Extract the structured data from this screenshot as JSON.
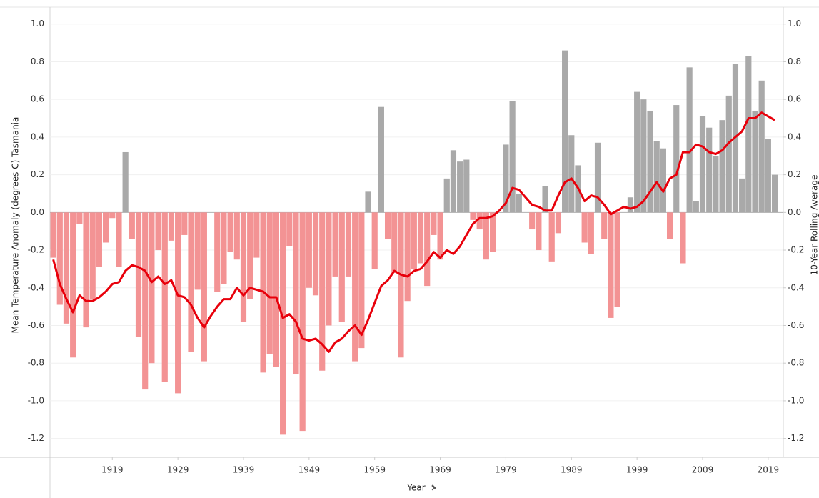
{
  "chart_data": {
    "type": "combo",
    "y_axis_label": "Mean Temperature Anomaly (degrees C) Tasmania",
    "y2_axis_label": "10-Year Rolling Average",
    "x_axis_label": "Year",
    "x": [
      1910,
      1911,
      1912,
      1913,
      1914,
      1915,
      1916,
      1917,
      1918,
      1919,
      1920,
      1921,
      1922,
      1923,
      1924,
      1925,
      1926,
      1927,
      1928,
      1929,
      1930,
      1931,
      1932,
      1933,
      1934,
      1935,
      1936,
      1937,
      1938,
      1939,
      1940,
      1941,
      1942,
      1943,
      1944,
      1945,
      1946,
      1947,
      1948,
      1949,
      1950,
      1951,
      1952,
      1953,
      1954,
      1955,
      1956,
      1957,
      1958,
      1959,
      1960,
      1961,
      1962,
      1963,
      1964,
      1965,
      1966,
      1967,
      1968,
      1969,
      1970,
      1971,
      1972,
      1973,
      1974,
      1975,
      1976,
      1977,
      1978,
      1979,
      1980,
      1981,
      1982,
      1983,
      1984,
      1985,
      1986,
      1987,
      1988,
      1989,
      1990,
      1991,
      1992,
      1993,
      1994,
      1995,
      1996,
      1997,
      1998,
      1999,
      2000,
      2001,
      2002,
      2003,
      2004,
      2005,
      2006,
      2007,
      2008,
      2009,
      2010,
      2011,
      2012,
      2013,
      2014,
      2015,
      2016,
      2017,
      2018,
      2019,
      2020
    ],
    "xlim": [
      1909.5,
      2021.3
    ],
    "xticks": [
      1919,
      1929,
      1939,
      1949,
      1959,
      1969,
      1979,
      1989,
      1999,
      2009,
      2019
    ],
    "ylim": [
      -1.3,
      1.09
    ],
    "yticks": [
      {
        "value": -1.2,
        "label": "-1.2"
      },
      {
        "value": -1,
        "label": "-1.0"
      },
      -0.8,
      -0.6,
      -0.4,
      -0.2,
      {
        "value": 0,
        "label": "0.0"
      },
      0.2,
      0.4,
      0.6,
      0.8,
      {
        "value": 1,
        "label": "1.0"
      }
    ],
    "y2lim": [
      -1.3,
      1.09
    ],
    "y2ticks": [
      {
        "value": -1.2,
        "label": "-1.2"
      },
      {
        "value": -1,
        "label": "-1.0"
      },
      -0.8,
      -0.6,
      -0.4,
      -0.2,
      {
        "value": 0,
        "label": "0.0"
      },
      0.2,
      0.4,
      0.6,
      0.8,
      {
        "value": 1,
        "label": "1.0"
      }
    ],
    "grid": true,
    "series": [
      {
        "type": "bar",
        "color": "#a9a9a9",
        "negative_color": "#f39394",
        "values": [
          -0.24,
          -0.49,
          -0.59,
          -0.77,
          -0.06,
          -0.61,
          -0.46,
          -0.29,
          -0.16,
          -0.03,
          -0.29,
          0.32,
          -0.14,
          -0.66,
          -0.94,
          -0.8,
          -0.2,
          -0.9,
          -0.15,
          -0.96,
          -0.12,
          -0.74,
          -0.41,
          -0.79,
          0.0,
          -0.42,
          -0.38,
          -0.21,
          -0.25,
          -0.58,
          -0.46,
          -0.24,
          -0.85,
          -0.75,
          -0.82,
          -1.18,
          -0.18,
          -0.86,
          -1.16,
          -0.4,
          -0.44,
          -0.84,
          -0.6,
          -0.34,
          -0.58,
          -0.34,
          -0.79,
          -0.72,
          0.11,
          -0.3,
          0.56,
          -0.14,
          -0.32,
          -0.77,
          -0.47,
          -0.3,
          -0.27,
          -0.39,
          -0.12,
          -0.25,
          0.18,
          0.33,
          0.27,
          0.28,
          -0.04,
          -0.09,
          -0.25,
          -0.21,
          0.0,
          0.36,
          0.59,
          0.1,
          0.0,
          -0.09,
          -0.2,
          0.14,
          -0.26,
          -0.11,
          0.86,
          0.41,
          0.25,
          -0.16,
          -0.22,
          0.37,
          -0.14,
          -0.56,
          -0.5,
          0.0,
          0.08,
          0.64,
          0.6,
          0.54,
          0.38,
          0.34,
          -0.14,
          0.57,
          -0.27,
          0.77,
          0.06,
          0.51,
          0.45,
          0.3,
          0.49,
          0.62,
          0.79,
          0.18,
          0.83,
          0.54,
          0.7,
          0.39,
          0.2
        ]
      },
      {
        "type": "line",
        "axis": "y2",
        "color": "#e8000b",
        "values": [
          -0.25,
          -0.38,
          -0.46,
          -0.53,
          -0.44,
          -0.47,
          -0.47,
          -0.45,
          -0.42,
          -0.38,
          -0.37,
          -0.31,
          -0.28,
          -0.29,
          -0.31,
          -0.37,
          -0.34,
          -0.38,
          -0.36,
          -0.44,
          -0.45,
          -0.49,
          -0.56,
          -0.61,
          -0.55,
          -0.5,
          -0.46,
          -0.46,
          -0.4,
          -0.44,
          -0.4,
          -0.41,
          -0.42,
          -0.45,
          -0.45,
          -0.56,
          -0.54,
          -0.58,
          -0.67,
          -0.68,
          -0.67,
          -0.7,
          -0.74,
          -0.69,
          -0.67,
          -0.63,
          -0.6,
          -0.65,
          -0.57,
          -0.48,
          -0.39,
          -0.36,
          -0.31,
          -0.33,
          -0.34,
          -0.31,
          -0.3,
          -0.26,
          -0.21,
          -0.24,
          -0.2,
          -0.22,
          -0.18,
          -0.12,
          -0.06,
          -0.03,
          -0.03,
          -0.02,
          0.01,
          0.05,
          0.13,
          0.12,
          0.08,
          0.04,
          0.03,
          0.01,
          0.01,
          0.09,
          0.16,
          0.18,
          0.13,
          0.06,
          0.09,
          0.08,
          0.04,
          -0.01,
          0.01,
          0.03,
          0.02,
          0.03,
          0.06,
          0.11,
          0.16,
          0.11,
          0.18,
          0.2,
          0.32,
          0.32,
          0.36,
          0.35,
          0.32,
          0.31,
          0.33,
          0.37,
          0.4,
          0.43,
          0.5,
          0.5,
          0.53,
          0.51,
          0.49
        ]
      }
    ]
  }
}
